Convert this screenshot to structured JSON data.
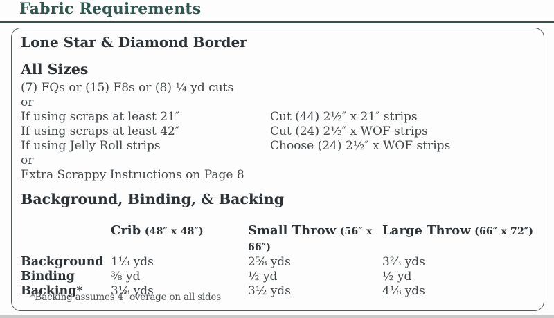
{
  "header": {
    "title": "Fabric Requirements"
  },
  "panel": {
    "title": "Lone Star & Diamond Border"
  },
  "all_sizes": {
    "heading": "All Sizes",
    "intro": "(7) FQs or (15) F8s or (8) ¼ yd cuts",
    "or_1": "or",
    "options": [
      {
        "condition": "If using scraps at least 21″",
        "cutting": "Cut (44) 2½″ x 21″ strips"
      },
      {
        "condition": "If using scraps at least 42″",
        "cutting": "Cut (24) 2½″ x WOF strips"
      },
      {
        "condition": "If using Jelly Roll strips",
        "cutting": "Choose (24) 2½″ x WOF strips"
      }
    ],
    "or_2": "or",
    "extra": "Extra Scrappy Instructions on Page 8"
  },
  "bbb": {
    "heading": "Background, Binding, & Backing",
    "columns": [
      {
        "name": "Crib",
        "size": "(48″ x 48″)"
      },
      {
        "name": "Small Throw",
        "size": "(56″ x 66″)"
      },
      {
        "name": "Large Throw",
        "size": "(66″ x 72″)"
      }
    ],
    "rows": [
      {
        "label": "Background",
        "values": [
          "1⅓ yds",
          "2⅝ yds",
          "3⅔ yds"
        ]
      },
      {
        "label": "Binding",
        "values": [
          "⅜ yd",
          "½ yd",
          "½ yd"
        ]
      },
      {
        "label": "Backing*",
        "values": [
          "3⅛ yds",
          "3½ yds",
          "4⅛ yds"
        ]
      }
    ],
    "footnote": "*Backing assumes 4″ overage on all sides"
  },
  "colors": {
    "accent_teal": "#2f564f",
    "heading_text": "#2d3236",
    "body_text": "#42474a",
    "panel_border": "#53585a",
    "page_edge": "#c9c9c9"
  }
}
